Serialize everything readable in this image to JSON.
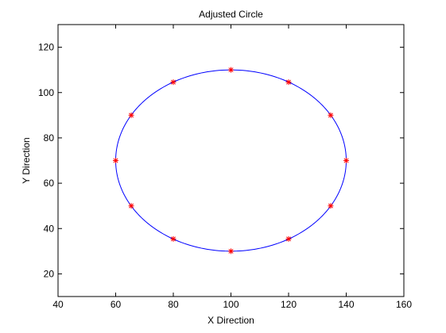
{
  "chart_data": {
    "type": "scatter",
    "title": "Adjusted Circle",
    "xlabel": "X Direction",
    "ylabel": "Y Direction",
    "xlim": [
      40,
      160
    ],
    "ylim": [
      10,
      130
    ],
    "xticks": [
      40,
      60,
      80,
      100,
      120,
      140,
      160
    ],
    "yticks": [
      20,
      40,
      60,
      80,
      100,
      120
    ],
    "grid": false,
    "legend": false,
    "series": [
      {
        "kind": "ellipse-curve",
        "center": [
          100,
          70
        ],
        "radii": [
          40,
          40
        ],
        "color": "#0000ff"
      },
      {
        "kind": "markers",
        "marker": "asterisk",
        "color": "#ff0000",
        "points": [
          {
            "x": 100,
            "y": 110
          },
          {
            "x": 120,
            "y": 104.6
          },
          {
            "x": 134.6,
            "y": 90
          },
          {
            "x": 140,
            "y": 70
          },
          {
            "x": 134.6,
            "y": 50
          },
          {
            "x": 120,
            "y": 35.4
          },
          {
            "x": 100,
            "y": 30
          },
          {
            "x": 80,
            "y": 35.4
          },
          {
            "x": 65.4,
            "y": 50
          },
          {
            "x": 60,
            "y": 70
          },
          {
            "x": 65.4,
            "y": 90
          },
          {
            "x": 80,
            "y": 104.6
          }
        ]
      }
    ]
  }
}
